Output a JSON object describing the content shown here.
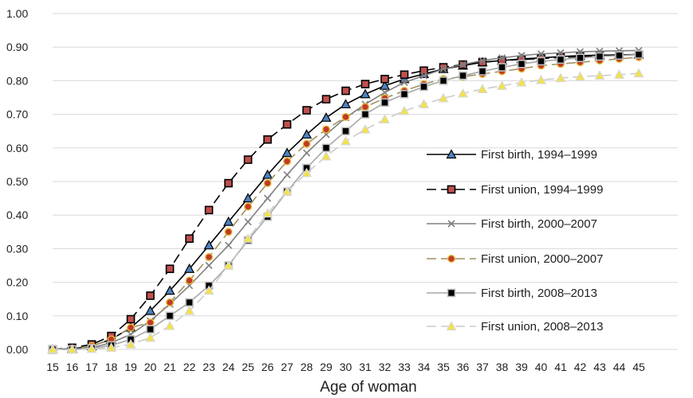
{
  "chart_data": {
    "type": "line",
    "title": "",
    "xlabel": "Age of woman",
    "ylabel": "",
    "ylim": [
      0,
      1
    ],
    "yticks": [
      "0.00",
      "0.10",
      "0.20",
      "0.30",
      "0.40",
      "0.50",
      "0.60",
      "0.70",
      "0.80",
      "0.90",
      "1.00"
    ],
    "x": [
      15,
      16,
      17,
      18,
      19,
      20,
      21,
      22,
      23,
      24,
      25,
      26,
      27,
      28,
      29,
      30,
      31,
      32,
      33,
      34,
      35,
      36,
      37,
      38,
      39,
      40,
      41,
      42,
      43,
      44,
      45
    ],
    "grid": "horizontal",
    "legend_position": "right",
    "series": [
      {
        "name": "First birth, 1994–1999",
        "line_color": "#000000",
        "dash": "solid",
        "marker": "triangle",
        "marker_fill": "#4f81bd",
        "marker_stroke": "#000000",
        "values": [
          0.0,
          0.002,
          0.01,
          0.03,
          0.065,
          0.115,
          0.175,
          0.24,
          0.31,
          0.38,
          0.45,
          0.52,
          0.585,
          0.64,
          0.69,
          0.73,
          0.76,
          0.785,
          0.805,
          0.82,
          0.835,
          0.845,
          0.855,
          0.86,
          0.865,
          0.868,
          0.872,
          0.875,
          0.876,
          0.877,
          0.878
        ]
      },
      {
        "name": "First union, 1994–1999",
        "line_color": "#000000",
        "dash": "long",
        "marker": "square",
        "marker_fill": "#c0504d",
        "marker_stroke": "#000000",
        "values": [
          0.0,
          0.005,
          0.015,
          0.04,
          0.09,
          0.16,
          0.24,
          0.33,
          0.415,
          0.495,
          0.565,
          0.625,
          0.67,
          0.712,
          0.745,
          0.77,
          0.79,
          0.805,
          0.818,
          0.83,
          0.84,
          0.848,
          0.855,
          0.86,
          0.863,
          0.866,
          0.869,
          0.872,
          0.874,
          0.876,
          0.878
        ]
      },
      {
        "name": "First birth, 2000–2007",
        "line_color": "#808080",
        "dash": "solid",
        "marker": "x",
        "marker_fill": "#808080",
        "marker_stroke": "#808080",
        "values": [
          0.0,
          0.001,
          0.005,
          0.02,
          0.045,
          0.085,
          0.135,
          0.19,
          0.25,
          0.31,
          0.38,
          0.45,
          0.52,
          0.585,
          0.64,
          0.69,
          0.73,
          0.765,
          0.795,
          0.815,
          0.835,
          0.848,
          0.86,
          0.868,
          0.875,
          0.88,
          0.883,
          0.886,
          0.888,
          0.889,
          0.89
        ]
      },
      {
        "name": "First union, 2000–2007",
        "line_color": "#a09060",
        "dash": "long",
        "marker": "circle",
        "marker_fill": "#c0392b",
        "marker_stroke": "#e8b830",
        "values": [
          0.0,
          0.002,
          0.01,
          0.03,
          0.065,
          0.08,
          0.14,
          0.205,
          0.275,
          0.35,
          0.425,
          0.495,
          0.56,
          0.612,
          0.655,
          0.692,
          0.722,
          0.748,
          0.77,
          0.79,
          0.805,
          0.812,
          0.82,
          0.828,
          0.836,
          0.845,
          0.85,
          0.855,
          0.86,
          0.865,
          0.87
        ]
      },
      {
        "name": "First birth, 2008–2013",
        "line_color": "#a6a6a6",
        "dash": "solid",
        "marker": "square",
        "marker_fill": "#000000",
        "marker_stroke": "#bfbfbf",
        "values": [
          0.0,
          0.0,
          0.003,
          0.012,
          0.03,
          0.06,
          0.1,
          0.14,
          0.19,
          0.25,
          0.325,
          0.395,
          0.47,
          0.54,
          0.6,
          0.65,
          0.7,
          0.735,
          0.76,
          0.782,
          0.8,
          0.815,
          0.828,
          0.84,
          0.85,
          0.858,
          0.863,
          0.868,
          0.872,
          0.875,
          0.878
        ]
      },
      {
        "name": "First union, 2008–2013",
        "line_color": "#cccccc",
        "dash": "long",
        "marker": "triangle",
        "marker_fill": "#f2e24a",
        "marker_stroke": "#d8d8d8",
        "values": [
          0.0,
          0.0,
          0.002,
          0.005,
          0.015,
          0.035,
          0.07,
          0.115,
          0.175,
          0.25,
          0.33,
          0.405,
          0.47,
          0.525,
          0.575,
          0.62,
          0.655,
          0.685,
          0.71,
          0.73,
          0.748,
          0.762,
          0.775,
          0.785,
          0.795,
          0.802,
          0.808,
          0.812,
          0.815,
          0.818,
          0.822
        ]
      }
    ]
  }
}
